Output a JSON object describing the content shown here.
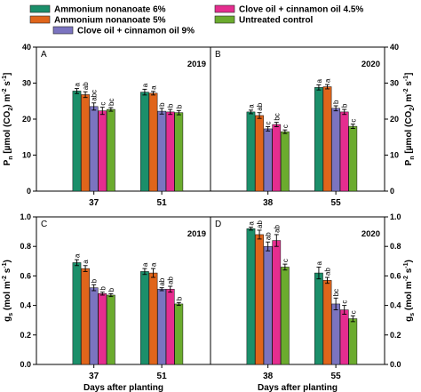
{
  "legend": {
    "entries": [
      {
        "label": "Ammonium nonanoate 6%",
        "color": "#1b8f6a"
      },
      {
        "label": "Ammonium nonanoate 5%",
        "color": "#e0651b"
      },
      {
        "label": "Clove oil + cinnamon oil 9%",
        "color": "#7b74c0"
      },
      {
        "label": "Clove oil + cinnamon oil 4.5%",
        "color": "#e52d8f"
      },
      {
        "label": "Untreated control",
        "color": "#6bab2e"
      }
    ]
  },
  "chart_data": [
    {
      "type": "bar",
      "panel": "A",
      "year": "2019",
      "ylim": [
        0,
        40
      ],
      "yticks": [
        "0",
        "10",
        "20",
        "30",
        "40"
      ],
      "ylabel": {
        "main": "P",
        "sub": "n",
        "rest": " [µmol (CO",
        "sub2": "2",
        "rest2": ") m",
        "sup": "-2",
        "rest3": " s",
        "sup2": "-1",
        "end": "]"
      },
      "xlabel": "",
      "categories": [
        "37",
        "51"
      ],
      "series": [
        {
          "values": [
            27.8,
            27.5
          ],
          "errors": [
            0.7,
            0.8
          ],
          "letters": [
            "a",
            "a"
          ]
        },
        {
          "values": [
            26.8,
            27.2
          ],
          "errors": [
            0.8,
            0.5
          ],
          "letters": [
            "ab",
            "a"
          ]
        },
        {
          "values": [
            23.5,
            22.2
          ],
          "errors": [
            1.0,
            0.8
          ],
          "letters": [
            "abc",
            "b"
          ]
        },
        {
          "values": [
            22.3,
            22.0
          ],
          "errors": [
            1.0,
            0.7
          ],
          "letters": [
            "c",
            "b"
          ]
        },
        {
          "values": [
            22.7,
            21.8
          ],
          "errors": [
            0.5,
            0.6
          ],
          "letters": [
            "bc",
            "b"
          ]
        }
      ]
    },
    {
      "type": "bar",
      "panel": "B",
      "year": "2020",
      "ylim": [
        0,
        40
      ],
      "yticks": [
        "0",
        "10",
        "20",
        "30",
        "40"
      ],
      "ylabel": {
        "main": "P",
        "sub": "n",
        "rest": " [µmol (CO",
        "sub2": "2",
        "rest2": ") m",
        "sup": "-2",
        "rest3": " s",
        "sup2": "-1",
        "end": "]"
      },
      "xlabel": "",
      "categories": [
        "38",
        "55"
      ],
      "series": [
        {
          "values": [
            22.0,
            28.8
          ],
          "errors": [
            0.5,
            0.7
          ],
          "letters": [
            "a",
            "a"
          ]
        },
        {
          "values": [
            21.0,
            29.0
          ],
          "errors": [
            0.8,
            0.6
          ],
          "letters": [
            "ab",
            "a"
          ]
        },
        {
          "values": [
            17.3,
            23.0
          ],
          "errors": [
            0.6,
            0.7
          ],
          "letters": [
            "c",
            "b"
          ]
        },
        {
          "values": [
            18.5,
            22.0
          ],
          "errors": [
            0.6,
            0.7
          ],
          "letters": [
            "bc",
            "b"
          ]
        },
        {
          "values": [
            16.5,
            18.0
          ],
          "errors": [
            0.5,
            0.6
          ],
          "letters": [
            "c",
            "c"
          ]
        }
      ]
    },
    {
      "type": "bar",
      "panel": "C",
      "year": "2019",
      "ylim": [
        0,
        1.0
      ],
      "yticks": [
        "0.0",
        "0.2",
        "0.4",
        "0.6",
        "0.8",
        "1.0"
      ],
      "ylabel": {
        "main": "g",
        "sub": "s",
        "rest": " (mol m",
        "sup": "-2",
        "rest3": " s",
        "sup2": "-1",
        "end": ")"
      },
      "xlabel": "Days after planting",
      "categories": [
        "37",
        "51"
      ],
      "series": [
        {
          "values": [
            0.69,
            0.63
          ],
          "errors": [
            0.02,
            0.02
          ],
          "letters": [
            "a",
            "a"
          ]
        },
        {
          "values": [
            0.65,
            0.62
          ],
          "errors": [
            0.02,
            0.03
          ],
          "letters": [
            "a",
            "a"
          ]
        },
        {
          "values": [
            0.52,
            0.51
          ],
          "errors": [
            0.02,
            0.01
          ],
          "letters": [
            "b",
            "ab"
          ]
        },
        {
          "values": [
            0.48,
            0.51
          ],
          "errors": [
            0.01,
            0.02
          ],
          "letters": [
            "b",
            "ab"
          ]
        },
        {
          "values": [
            0.47,
            0.41
          ],
          "errors": [
            0.01,
            0.01
          ],
          "letters": [
            "b",
            "b"
          ]
        }
      ]
    },
    {
      "type": "bar",
      "panel": "D",
      "year": "2020",
      "ylim": [
        0,
        1.0
      ],
      "yticks": [
        "0.0",
        "0.2",
        "0.4",
        "0.6",
        "0.8",
        "1.0"
      ],
      "ylabel": {
        "main": "g",
        "sub": "s",
        "rest": " (mol m",
        "sup": "-2",
        "rest3": " s",
        "sup2": "-1",
        "end": ")"
      },
      "xlabel": "Days after planting",
      "categories": [
        "38",
        "55"
      ],
      "series": [
        {
          "values": [
            0.92,
            0.62
          ],
          "errors": [
            0.01,
            0.04
          ],
          "letters": [
            "a",
            "a"
          ]
        },
        {
          "values": [
            0.88,
            0.57
          ],
          "errors": [
            0.03,
            0.02
          ],
          "letters": [
            "ab",
            "ab"
          ]
        },
        {
          "values": [
            0.8,
            0.41
          ],
          "errors": [
            0.03,
            0.04
          ],
          "letters": [
            "ab",
            "bc"
          ]
        },
        {
          "values": [
            0.84,
            0.37
          ],
          "errors": [
            0.04,
            0.03
          ],
          "letters": [
            "ab",
            "c"
          ]
        },
        {
          "values": [
            0.66,
            0.31
          ],
          "errors": [
            0.02,
            0.02
          ],
          "letters": [
            "c",
            "c"
          ]
        }
      ]
    }
  ]
}
